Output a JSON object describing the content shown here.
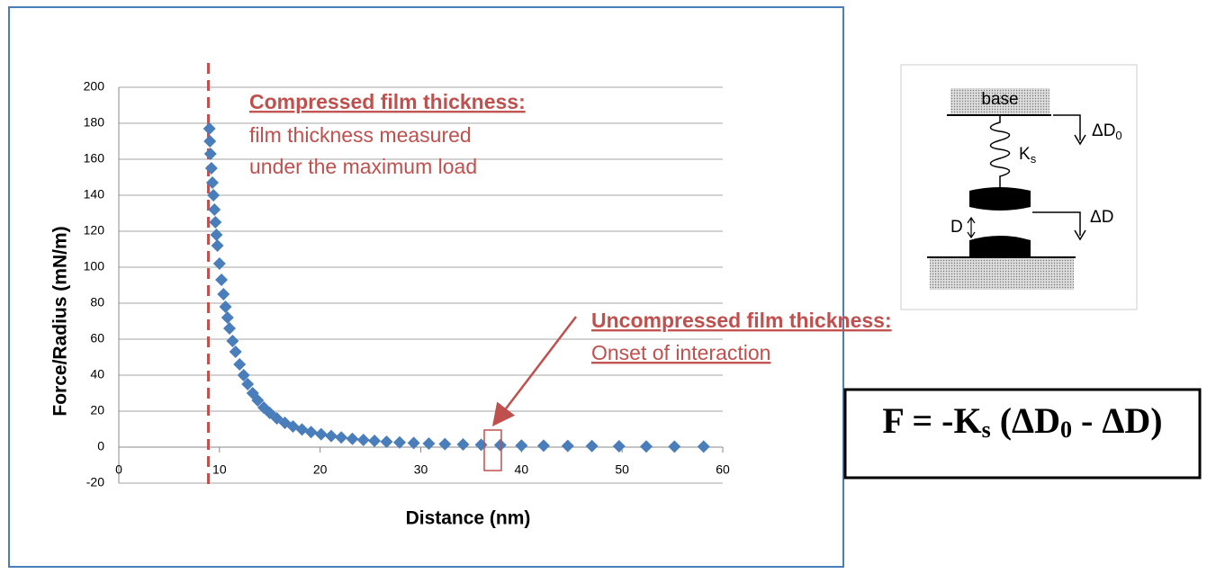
{
  "chart_data": {
    "type": "scatter",
    "xlabel": "Distance (nm)",
    "ylabel": "Force/Radius  (mN/m)",
    "xlim": [
      0,
      60
    ],
    "xticks": [
      0,
      10,
      20,
      30,
      40,
      50,
      60
    ],
    "ylim": [
      -20,
      200
    ],
    "yticks": [
      -20,
      0,
      20,
      40,
      60,
      80,
      100,
      120,
      140,
      160,
      180,
      200
    ],
    "grid": true,
    "color": "#4a7ebb",
    "marker_line_color": "#c0504d",
    "vline": 8.9,
    "annotations": [
      {
        "title": "Compressed film thickness:",
        "lines": [
          "film thickness measured",
          "under the maximum load"
        ]
      },
      {
        "title": "Uncompressed film thickness:",
        "lines": [
          "Onset of interaction"
        ]
      }
    ],
    "x": [
      9.0,
      9.05,
      9.1,
      9.2,
      9.3,
      9.4,
      9.5,
      9.6,
      9.7,
      9.8,
      10.0,
      10.2,
      10.4,
      10.6,
      10.8,
      11.0,
      11.3,
      11.6,
      12.0,
      12.4,
      12.8,
      13.3,
      13.8,
      14.4,
      15.0,
      15.7,
      16.5,
      17.3,
      18.2,
      19.1,
      20.1,
      21.1,
      22.1,
      23.2,
      24.3,
      25.4,
      26.6,
      27.9,
      29.3,
      30.8,
      32.4,
      34.2,
      36.0,
      37.9,
      40.0,
      42.2,
      44.6,
      47.0,
      49.7,
      52.4,
      55.2,
      58.1
    ],
    "values": [
      177,
      170,
      163,
      155,
      147,
      140,
      132,
      125,
      118,
      112,
      102,
      93,
      85,
      78,
      72,
      66,
      59,
      53,
      46,
      40,
      35,
      30,
      26,
      22,
      19,
      16,
      13.5,
      11.5,
      9.8,
      8.4,
      7.2,
      6.2,
      5.4,
      4.6,
      4.0,
      3.5,
      3.0,
      2.6,
      2.3,
      2.0,
      1.7,
      1.5,
      1.3,
      1.1,
      0.9,
      0.8,
      0.7,
      0.6,
      0.5,
      0.4,
      0.3,
      0.3
    ]
  },
  "diagram": {
    "base": "base",
    "spring": "K",
    "spring_sub": "s",
    "top_shift": "ΔD",
    "top_shift_sub": "0",
    "gap": "D",
    "shift": "ΔD"
  },
  "formula": {
    "left": "F = -K",
    "sub": "s",
    "mid": " (ΔD",
    "sub2": "0",
    "right": " - ΔD)"
  }
}
